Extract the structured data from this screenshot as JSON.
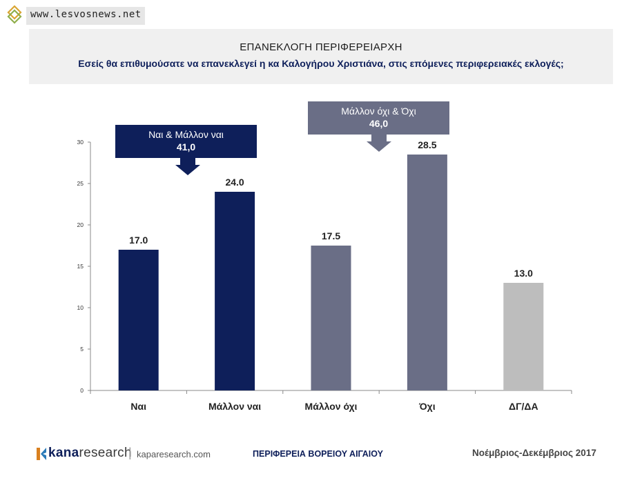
{
  "watermark": {
    "text": "www.lesvosnews.net"
  },
  "header": {
    "title": "ΕΠΑΝΕΚΛΟΓΗ ΠΕΡΙΦΕΡΕΙΑΡΧΗ",
    "subtitle": "Εσείς θα επιθυμούσατε να επανεκλεγεί η κα Καλογήρου Χριστιάνα, στις επόμενες περιφερειακές εκλογές;"
  },
  "callouts": [
    {
      "label": "Ναι & Μάλλον ναι",
      "value": "41,0",
      "color": "#0e1f5a"
    },
    {
      "label": "Μάλλον όχι & Όχι",
      "value": "46,0",
      "color": "#6a6e86"
    }
  ],
  "chart_data": {
    "type": "bar",
    "categories": [
      "Ναι",
      "Μάλλον ναι",
      "Μάλλον όχι",
      "Όχι",
      "ΔΓ/ΔΑ"
    ],
    "values": [
      17.0,
      24.0,
      17.5,
      28.5,
      13.0
    ],
    "value_labels": [
      "17.0",
      "24.0",
      "17.5",
      "28.5",
      "13.0"
    ],
    "colors": [
      "#0e1f5a",
      "#0e1f5a",
      "#6a6e86",
      "#6a6e86",
      "#bdbdbd"
    ],
    "ylim": [
      0,
      30
    ],
    "yticks": [
      0,
      5,
      10,
      15,
      20,
      25,
      30
    ],
    "title": "",
    "xlabel": "",
    "ylabel": "",
    "grid": false
  },
  "footer": {
    "logo_kana": "kana",
    "logo_research": "research",
    "logo_separator": "|",
    "site": "kaparesearch.com",
    "region": "ΠΕΡΙΦΕΡΕΙΑ ΒΟΡΕΙΟΥ ΑΙΓΑΙΟΥ",
    "period": "Νοέμβριος-Δεκέμβριος 2017"
  }
}
